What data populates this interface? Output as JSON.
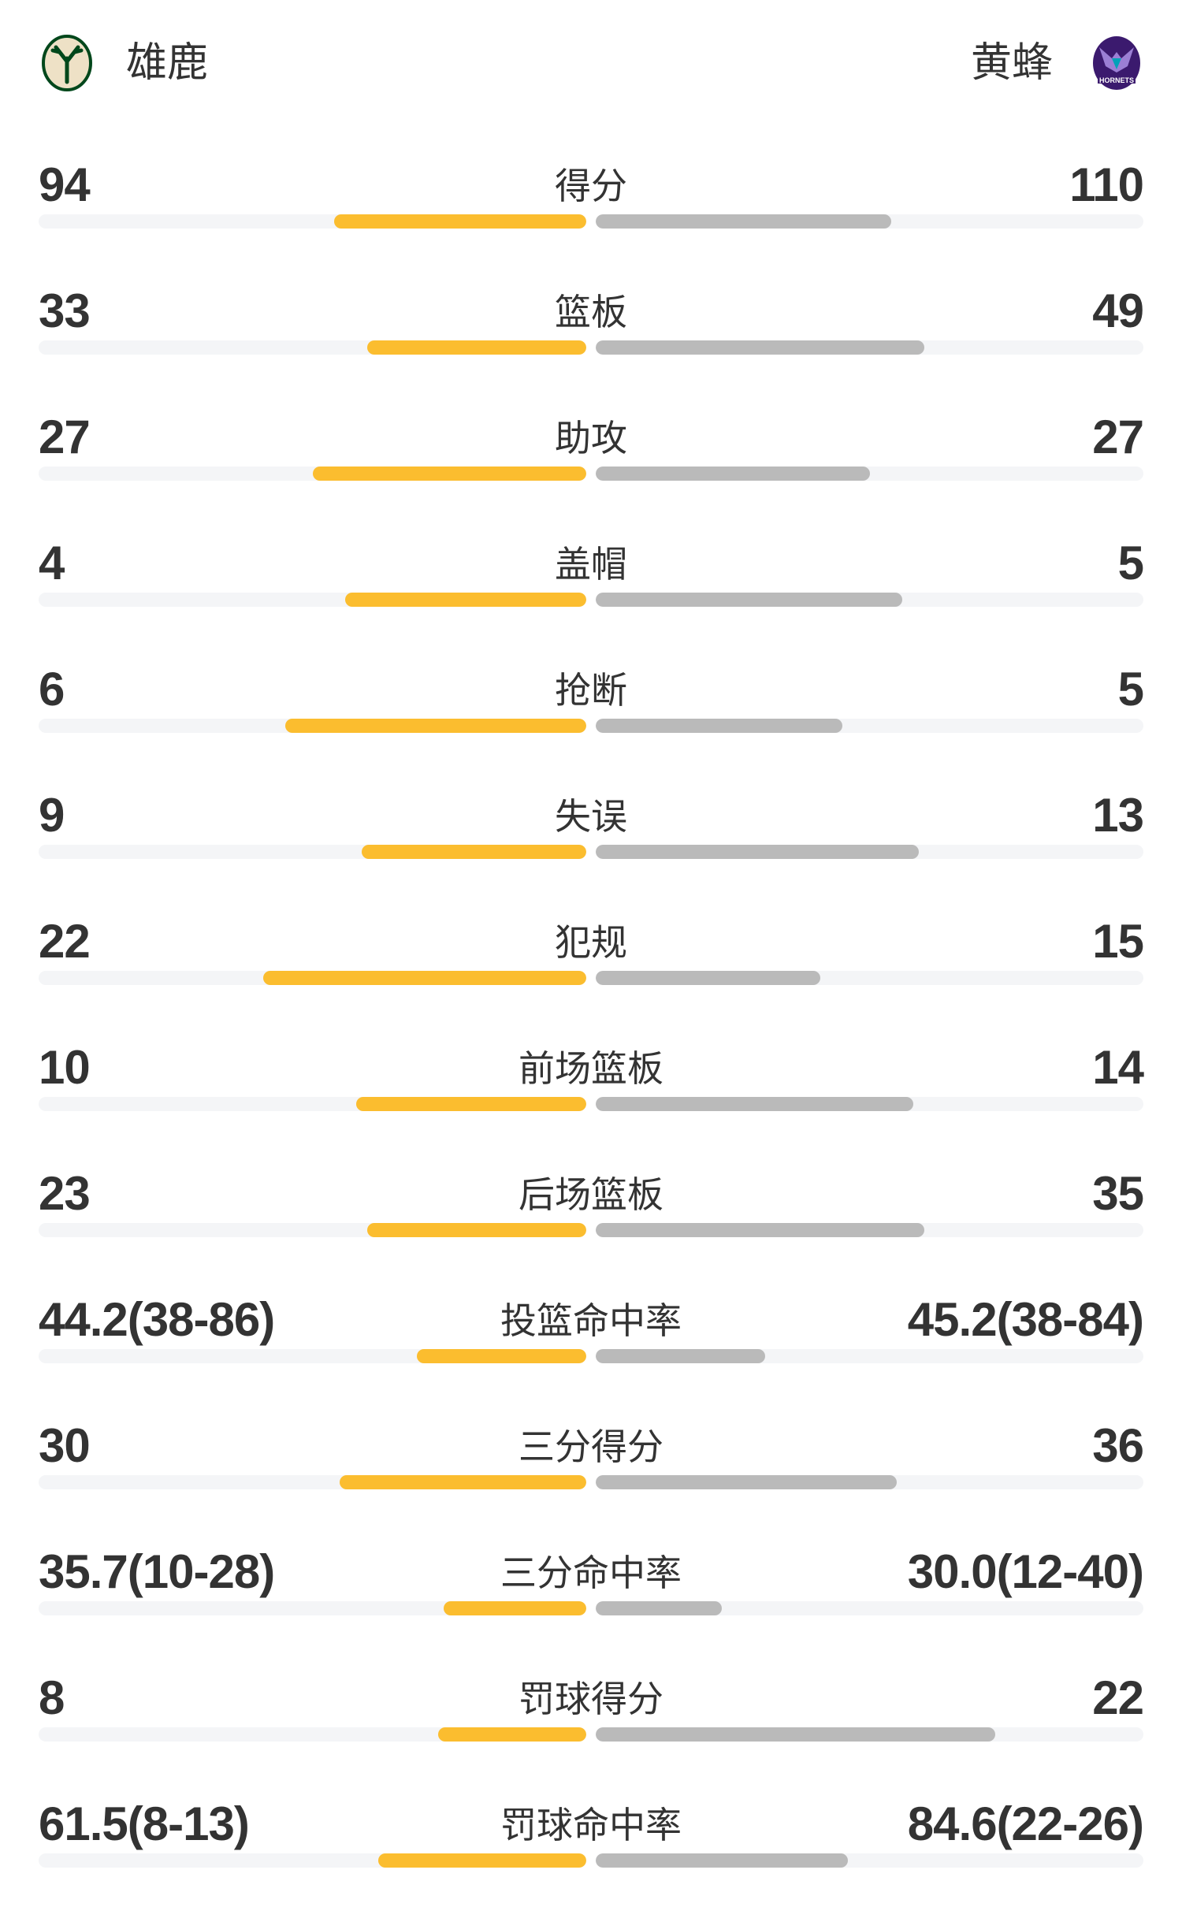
{
  "header": {
    "home": {
      "name": "雄鹿",
      "logo_text": "BUCKS",
      "logo_colors": [
        "#eee1c6",
        "#00471b"
      ]
    },
    "away": {
      "name": "黄蜂",
      "logo_text": "HORNETS",
      "logo_colors": [
        "#3b1a6e",
        "#00a2b8"
      ]
    }
  },
  "colors": {
    "home_bar": "#fbbd2f",
    "away_bar": "#bababa",
    "track": "#f4f5f7"
  },
  "stats": [
    {
      "label": "得分",
      "home": "94",
      "away": "110",
      "home_fill": 0.46,
      "away_fill": 0.54
    },
    {
      "label": "篮板",
      "home": "33",
      "away": "49",
      "home_fill": 0.4,
      "away_fill": 0.6
    },
    {
      "label": "助攻",
      "home": "27",
      "away": "27",
      "home_fill": 0.5,
      "away_fill": 0.5
    },
    {
      "label": "盖帽",
      "home": "4",
      "away": "5",
      "home_fill": 0.44,
      "away_fill": 0.56
    },
    {
      "label": "抢断",
      "home": "6",
      "away": "5",
      "home_fill": 0.55,
      "away_fill": 0.45
    },
    {
      "label": "失误",
      "home": "9",
      "away": "13",
      "home_fill": 0.41,
      "away_fill": 0.59
    },
    {
      "label": "犯规",
      "home": "22",
      "away": "15",
      "home_fill": 0.59,
      "away_fill": 0.41
    },
    {
      "label": "前场篮板",
      "home": "10",
      "away": "14",
      "home_fill": 0.42,
      "away_fill": 0.58
    },
    {
      "label": "后场篮板",
      "home": "23",
      "away": "35",
      "home_fill": 0.4,
      "away_fill": 0.6
    },
    {
      "label": "投篮命中率",
      "home": "44.2(38-86)",
      "away": "45.2(38-84)",
      "home_fill": 0.31,
      "away_fill": 0.31
    },
    {
      "label": "三分得分",
      "home": "30",
      "away": "36",
      "home_fill": 0.45,
      "away_fill": 0.55
    },
    {
      "label": "三分命中率",
      "home": "35.7(10-28)",
      "away": "30.0(12-40)",
      "home_fill": 0.26,
      "away_fill": 0.23
    },
    {
      "label": "罚球得分",
      "home": "8",
      "away": "22",
      "home_fill": 0.27,
      "away_fill": 0.73
    },
    {
      "label": "罚球命中率",
      "home": "61.5(8-13)",
      "away": "84.6(22-26)",
      "home_fill": 0.38,
      "away_fill": 0.46
    }
  ]
}
